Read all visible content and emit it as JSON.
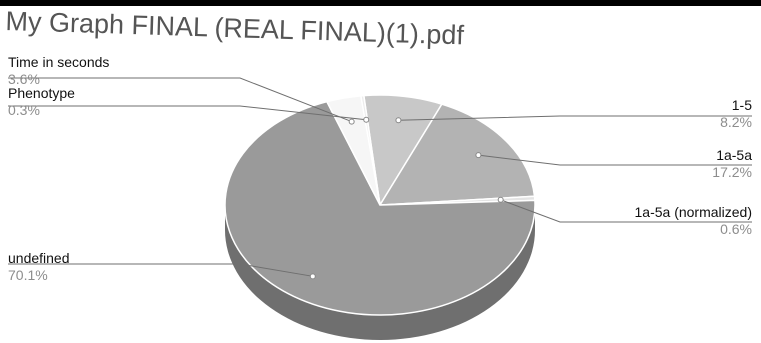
{
  "title": "My Graph FINAL (REAL FINAL)(1).pdf",
  "colors": {
    "background": "#ffffff",
    "top_bar": "#000000",
    "slice_top": [
      "#c8c8c8",
      "#b3b3b3",
      "#e4e4e4",
      "#9a9a9a",
      "#f6f6f6",
      "#ececec"
    ],
    "slice_side": [
      "#9e9e9e",
      "#8a8a8a",
      "#bdbdbd",
      "#6f6f6f",
      "#cfcfcf",
      "#c4c4c4"
    ],
    "leader_line": "#6f6f6f"
  },
  "chart_data": {
    "type": "pie",
    "style": "3d",
    "title": "My Graph FINAL (REAL FINAL)(1).pdf",
    "slices": [
      {
        "label": "1-5",
        "value": 8.2,
        "value_label": "8.2%",
        "label_side": "right"
      },
      {
        "label": "1a-5a",
        "value": 17.2,
        "value_label": "17.2%",
        "label_side": "right"
      },
      {
        "label": "1a-5a (normalized)",
        "value": 0.6,
        "value_label": "0.6%",
        "label_side": "right"
      },
      {
        "label": "undefined",
        "value": 70.1,
        "value_label": "70.1%",
        "label_side": "left"
      },
      {
        "label": "Time in seconds",
        "value": 3.6,
        "value_label": "3.6%",
        "label_side": "left"
      },
      {
        "label": "Phenotype",
        "value": 0.3,
        "value_label": "0.3%",
        "label_side": "left"
      }
    ],
    "legend": "none"
  }
}
